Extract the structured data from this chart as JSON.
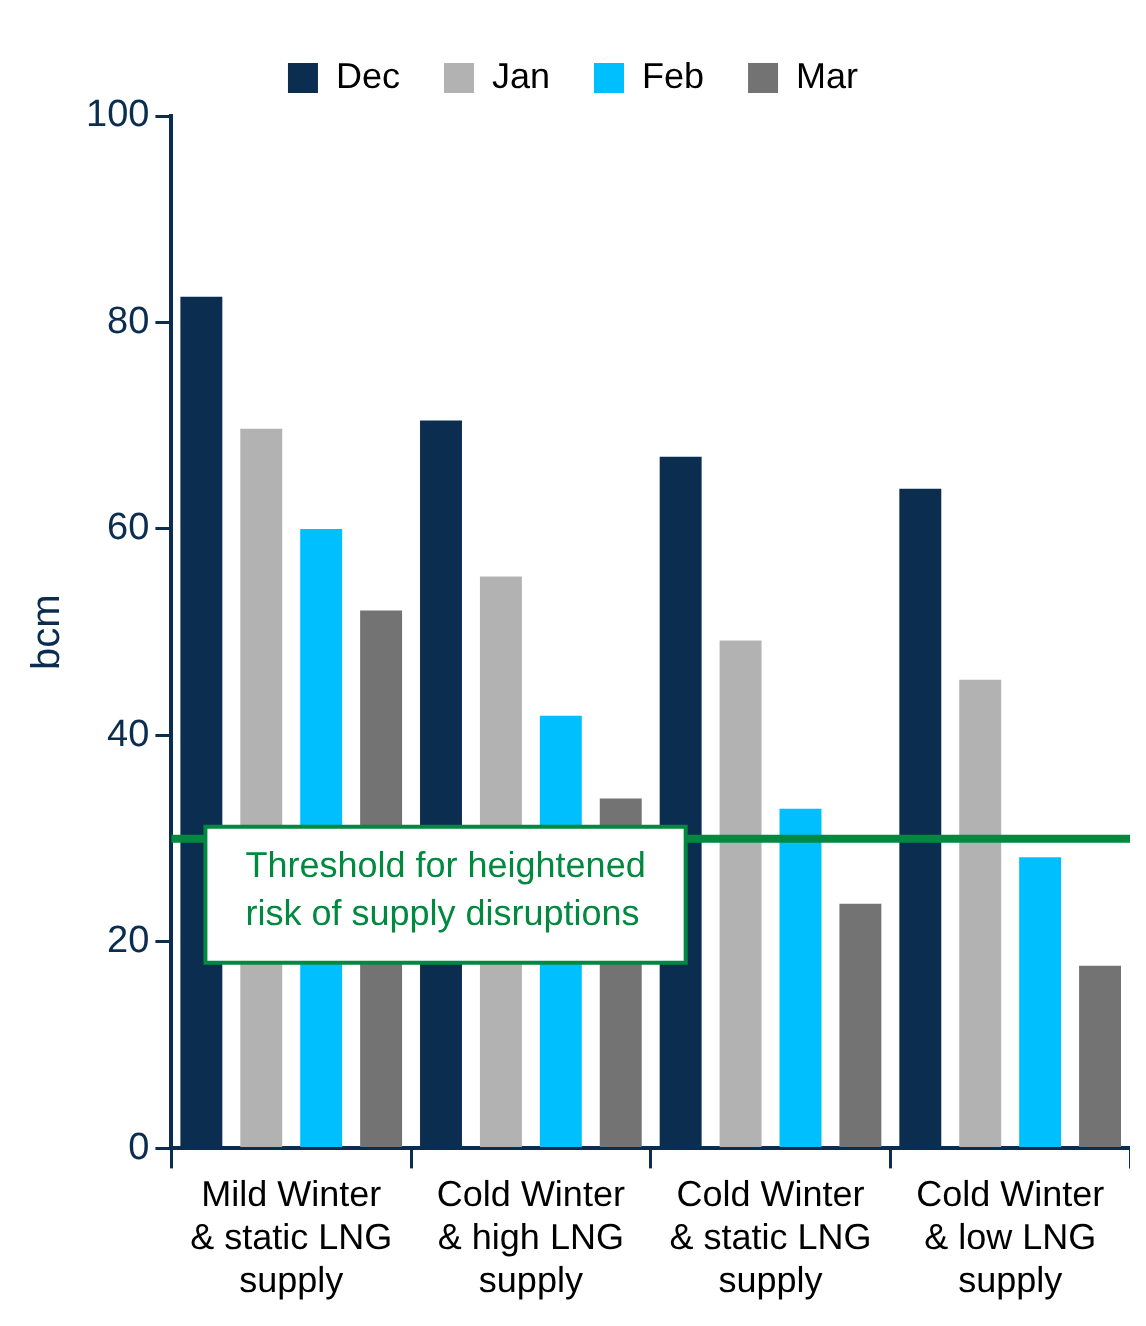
{
  "chart_data": {
    "type": "bar",
    "ylabel": "bcm",
    "categories": [
      "Mild Winter & static LNG supply",
      "Cold Winter & high LNG supply",
      "Cold Winter & static LNG supply",
      "Cold Winter & low LNG supply"
    ],
    "series": [
      {
        "name": "Dec",
        "color": "#0b2d4f",
        "values": [
          82.5,
          70.5,
          67,
          63.9
        ]
      },
      {
        "name": "Jan",
        "color": "#b2b2b2",
        "values": [
          69.7,
          55.4,
          49.2,
          45.4
        ]
      },
      {
        "name": "Feb",
        "color": "#00bfff",
        "values": [
          60,
          41.9,
          32.9,
          28.2
        ]
      },
      {
        "name": "Mar",
        "color": "#737373",
        "values": [
          52.1,
          33.9,
          23.7,
          17.7
        ]
      }
    ],
    "ylim": [
      0,
      100
    ],
    "yticks": [
      0,
      20,
      40,
      60,
      80,
      100
    ],
    "grid": false,
    "legend": "top",
    "ref_lines": [
      {
        "axis": "y",
        "value": 30,
        "label": "Threshold for heightened risk of supply disruptions",
        "color": "#00893f"
      }
    ]
  }
}
